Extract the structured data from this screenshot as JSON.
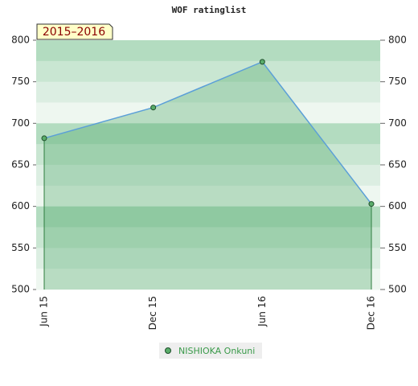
{
  "chart_data": {
    "type": "line",
    "title": "WOF ratinglist",
    "subtitle": "2015–2016",
    "categories": [
      "Jun 15",
      "Dec 15",
      "Jun 16",
      "Dec 16"
    ],
    "series": [
      {
        "name": "NISHIOKA Onkuni",
        "color": "#5b9fd8",
        "values": [
          682,
          719,
          774,
          603
        ]
      }
    ],
    "ylim": [
      500,
      800
    ],
    "yticks": [
      500,
      550,
      600,
      650,
      700,
      750,
      800
    ],
    "y2lim": [
      500,
      800
    ],
    "y2ticks": [
      500,
      550,
      600,
      650,
      700,
      750,
      800
    ]
  }
}
